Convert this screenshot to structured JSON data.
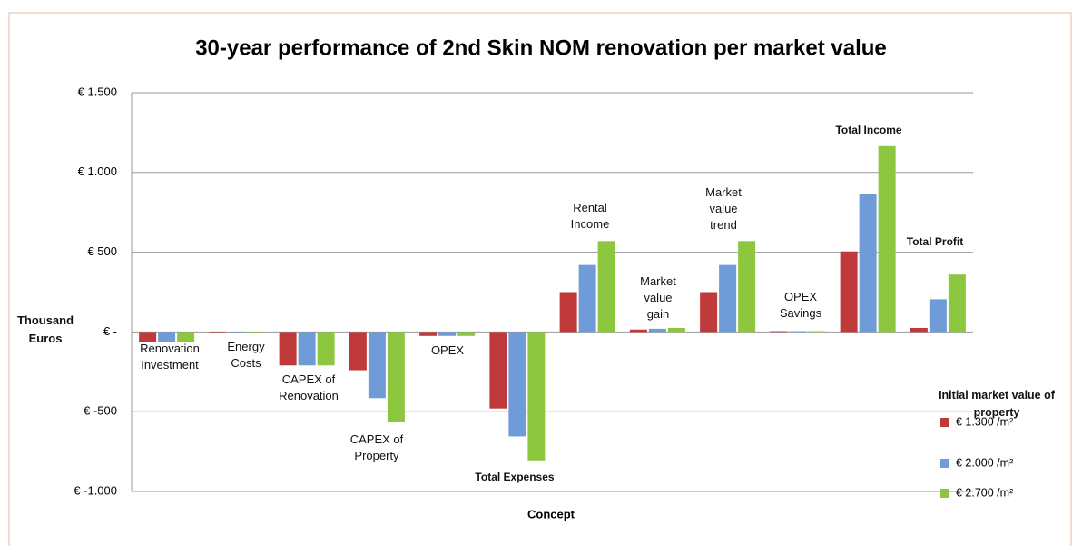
{
  "chart_data": {
    "type": "bar",
    "title": "30-year performance of 2nd Skin NOM renovation per market value",
    "x_label": "Concept",
    "y_label": "Thousand Euros",
    "legend_title": "Initial market value of property",
    "categories": [
      "Renovation Investment",
      "Energy Costs",
      "CAPEX of Renovation",
      "CAPEX of Property",
      "OPEX",
      "Total Expenses",
      "Rental Income",
      "Market value gain",
      "Market value trend",
      "OPEX Savings",
      "Total Income",
      "Total Profit"
    ],
    "series": [
      {
        "name": "€ 1.300 /m²",
        "color": "#c0393b",
        "values": [
          -65,
          -5,
          -210,
          -240,
          -25,
          -480,
          250,
          15,
          250,
          5,
          505,
          25
        ]
      },
      {
        "name": "€ 2.000 /m²",
        "color": "#6f9bd8",
        "values": [
          -65,
          -5,
          -210,
          -415,
          -25,
          -655,
          420,
          20,
          420,
          5,
          865,
          205
        ]
      },
      {
        "name": "€ 2.700 /m²",
        "color": "#8dc63f",
        "values": [
          -65,
          -5,
          -210,
          -565,
          -25,
          -805,
          570,
          25,
          570,
          5,
          1165,
          360
        ]
      }
    ],
    "ylim": [
      -1000,
      1500
    ],
    "yticks": [
      {
        "value": -1000,
        "label": "€ -1.000"
      },
      {
        "value": -500,
        "label": "€ -500"
      },
      {
        "value": 0,
        "label": "€ -"
      },
      {
        "value": 500,
        "label": "€ 500"
      },
      {
        "value": 1000,
        "label": "€ 1.000"
      },
      {
        "value": 1500,
        "label": "€ 1.500"
      }
    ],
    "grid": true,
    "legend": "right"
  }
}
